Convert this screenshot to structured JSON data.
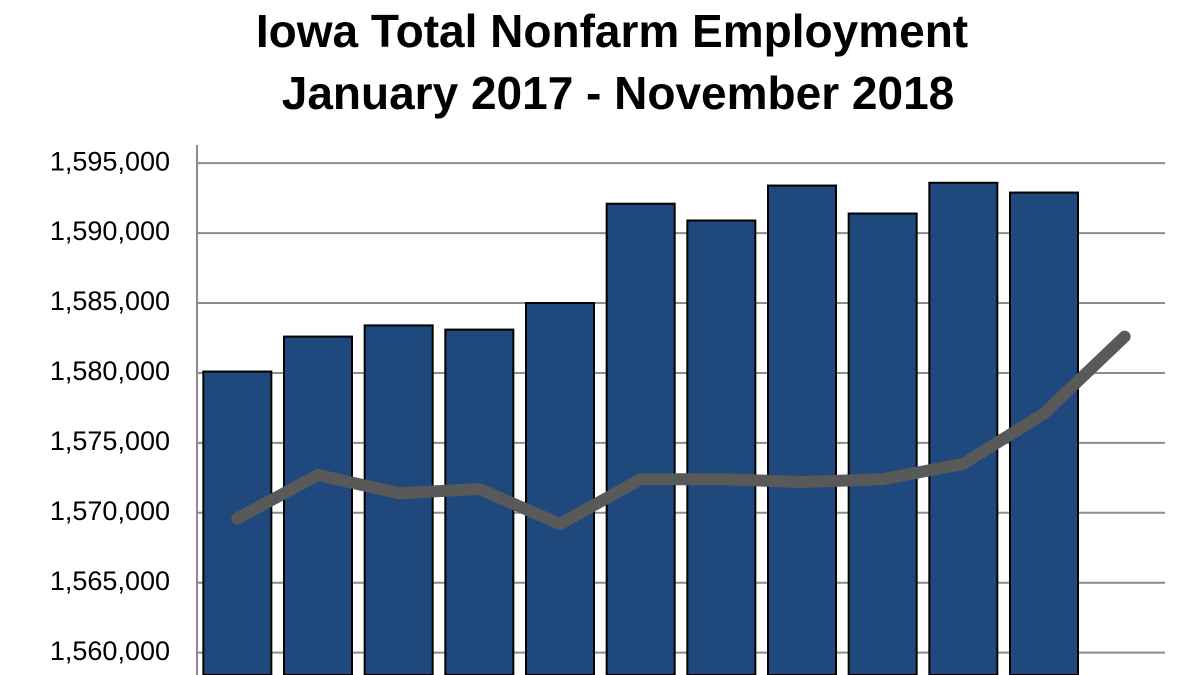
{
  "chart_data": {
    "type": "combo",
    "title": "Iowa Total Nonfarm Employment",
    "subtitle": "January 2017 -  November 2018",
    "categories": [
      null,
      null,
      null,
      null,
      null,
      null,
      null,
      null,
      null,
      null,
      null,
      null
    ],
    "series": [
      {
        "type": "bar",
        "color": "#1f497d",
        "values": [
          1580100,
          1582600,
          1583400,
          1583100,
          1585000,
          1592100,
          1590900,
          1593400,
          1591400,
          1593600,
          1592900,
          null
        ]
      },
      {
        "type": "line",
        "color": "#595959",
        "values": [
          1569600,
          1572700,
          1571400,
          1571700,
          1569200,
          1572400,
          1572400,
          1572200,
          1572400,
          1573500,
          1577100,
          1582600
        ]
      }
    ],
    "ylim": [
      1558400,
      1596300
    ],
    "yticks": [
      {
        "value": 1560000,
        "label": "1,560,000"
      },
      {
        "value": 1565000,
        "label": "1,565,000"
      },
      {
        "value": 1570000,
        "label": "1,570,000"
      },
      {
        "value": 1575000,
        "label": "1,575,000"
      },
      {
        "value": 1580000,
        "label": "1,580,000"
      },
      {
        "value": 1585000,
        "label": "1,585,000"
      },
      {
        "value": 1590000,
        "label": "1,590,000"
      },
      {
        "value": 1595000,
        "label": "1,595,000"
      }
    ],
    "grid": true
  }
}
